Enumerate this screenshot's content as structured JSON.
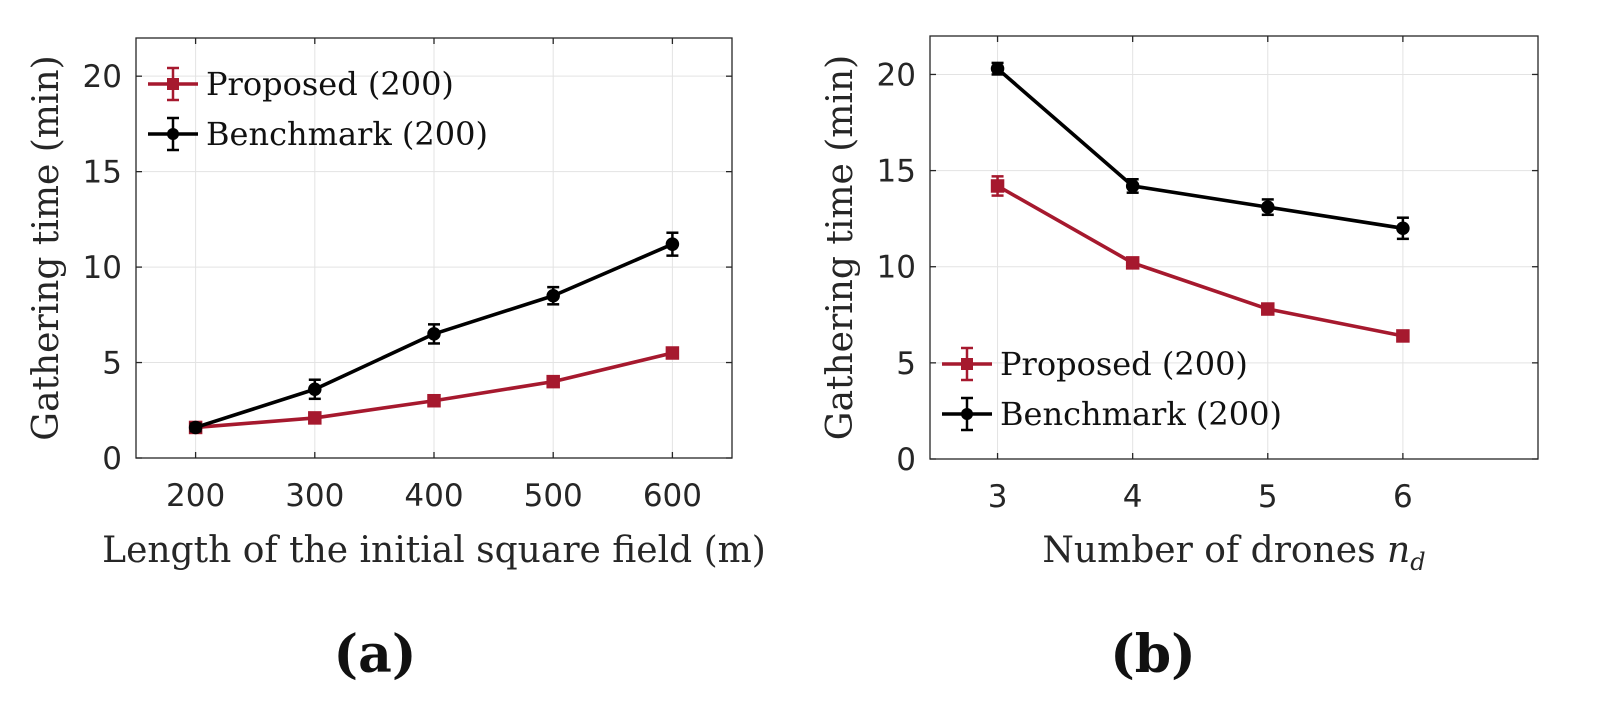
{
  "colors": {
    "proposed": "#a6192e",
    "benchmark": "#000000"
  },
  "chart_data": [
    {
      "type": "line",
      "panel_label": "(a)",
      "xlabel": "Length of the initial square field (m)",
      "xlabel_parts": [
        {
          "text": "Length of the initial square field (m)",
          "style": "normal"
        }
      ],
      "ylabel": "Gathering time (min)",
      "xlim": [
        150,
        650
      ],
      "ylim": [
        0,
        22
      ],
      "xticks": [
        200,
        300,
        400,
        500,
        600
      ],
      "xtick_labels": [
        "200",
        "300",
        "400",
        "500",
        "600"
      ],
      "yticks": [
        0,
        5,
        10,
        15,
        20
      ],
      "ytick_labels": [
        "0",
        "5",
        "10",
        "15",
        "20"
      ],
      "grid": true,
      "legend_position": "top-left",
      "x": [
        200,
        300,
        400,
        500,
        600
      ],
      "series": [
        {
          "name": "Proposed (200)",
          "marker": "square",
          "color_key": "proposed",
          "values": [
            1.6,
            2.1,
            3.0,
            4.0,
            5.5
          ],
          "errors": [
            0.15,
            0.2,
            0.15,
            0.15,
            0.2
          ]
        },
        {
          "name": "Benchmark (200)",
          "marker": "circle",
          "color_key": "benchmark",
          "values": [
            1.6,
            3.6,
            6.5,
            8.5,
            11.2
          ],
          "errors": [
            0.2,
            0.5,
            0.5,
            0.45,
            0.6
          ]
        }
      ]
    },
    {
      "type": "line",
      "panel_label": "(b)",
      "xlabel": "Number of drones n_d",
      "xlabel_parts": [
        {
          "text": "Number of drones ",
          "style": "normal"
        },
        {
          "text": "n",
          "style": "italic"
        },
        {
          "text": "d",
          "style": "subscript"
        }
      ],
      "ylabel": "Gathering time (min)",
      "xlim": [
        2.5,
        7.0
      ],
      "ylim": [
        0,
        22
      ],
      "xticks": [
        3,
        4,
        5,
        6
      ],
      "xtick_labels": [
        "3",
        "4",
        "5",
        "6"
      ],
      "yticks": [
        0,
        5,
        10,
        15,
        20
      ],
      "ytick_labels": [
        "0",
        "5",
        "10",
        "15",
        "20"
      ],
      "grid": true,
      "legend_position": "bottom-left",
      "x": [
        3,
        4,
        5,
        6
      ],
      "series": [
        {
          "name": "Proposed (200)",
          "marker": "square",
          "color_key": "proposed",
          "values": [
            14.2,
            10.2,
            7.8,
            6.4
          ],
          "errors": [
            0.5,
            0.25,
            0.2,
            0.25
          ]
        },
        {
          "name": "Benchmark (200)",
          "marker": "circle",
          "color_key": "benchmark",
          "values": [
            20.3,
            14.2,
            13.1,
            12.0
          ],
          "errors": [
            0.3,
            0.35,
            0.4,
            0.55
          ]
        }
      ]
    }
  ]
}
